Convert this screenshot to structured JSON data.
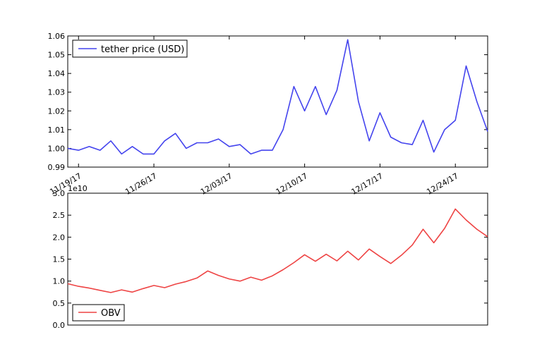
{
  "chart_data": [
    {
      "type": "line",
      "series": [
        {
          "name": "tether price (USD)",
          "color": "#4444ee",
          "x": [
            0,
            1,
            2,
            3,
            4,
            5,
            6,
            7,
            8,
            9,
            10,
            11,
            12,
            13,
            14,
            15,
            16,
            17,
            18,
            19,
            20,
            21,
            22,
            23,
            24,
            25,
            26,
            27,
            28,
            29,
            30,
            31,
            32,
            33,
            34,
            35,
            36,
            37,
            38,
            39
          ],
          "values": [
            1.0,
            0.999,
            1.001,
            0.999,
            1.004,
            0.997,
            1.001,
            0.997,
            0.997,
            1.004,
            1.008,
            1.0,
            1.003,
            1.003,
            1.005,
            1.001,
            1.002,
            0.997,
            0.999,
            0.999,
            1.01,
            1.033,
            1.02,
            1.033,
            1.018,
            1.031,
            1.058,
            1.025,
            1.004,
            1.019,
            1.006,
            1.003,
            1.002,
            1.015,
            0.998,
            1.01,
            1.015,
            1.044,
            1.025,
            1.009
          ]
        }
      ],
      "ylim": [
        0.99,
        1.06
      ],
      "xlim": [
        0,
        39
      ],
      "yticks": [
        "0.99",
        "1.00",
        "1.01",
        "1.02",
        "1.03",
        "1.04",
        "1.05",
        "1.06"
      ],
      "xtick_labels": [
        "11/19/17",
        "11/26/17",
        "12/03/17",
        "12/10/17",
        "12/17/17",
        "12/24/17"
      ],
      "xtick_positions": [
        1,
        8,
        15,
        22,
        29,
        36
      ],
      "legend": "top-left",
      "grid": false
    },
    {
      "type": "line",
      "offset_text": "1e10",
      "series": [
        {
          "name": "OBV",
          "color": "#ee4444",
          "x": [
            0,
            1,
            2,
            3,
            4,
            5,
            6,
            7,
            8,
            9,
            10,
            11,
            12,
            13,
            14,
            15,
            16,
            17,
            18,
            19,
            20,
            21,
            22,
            23,
            24,
            25,
            26,
            27,
            28,
            29,
            30,
            31,
            32,
            33,
            34,
            35,
            36,
            37,
            38,
            39
          ],
          "values": [
            0.94,
            0.88,
            0.84,
            0.79,
            0.74,
            0.8,
            0.75,
            0.83,
            0.9,
            0.85,
            0.93,
            0.99,
            1.07,
            1.23,
            1.13,
            1.05,
            1.0,
            1.09,
            1.02,
            1.12,
            1.26,
            1.42,
            1.6,
            1.45,
            1.61,
            1.46,
            1.68,
            1.48,
            1.73,
            1.56,
            1.4,
            1.59,
            1.82,
            2.18,
            1.87,
            2.2,
            2.64,
            2.39,
            2.18,
            2.01
          ]
        }
      ],
      "ylim": [
        0.0,
        3.0
      ],
      "xlim": [
        0,
        39
      ],
      "yticks": [
        "0.0",
        "0.5",
        "1.0",
        "1.5",
        "2.0",
        "2.5",
        "3.0"
      ],
      "legend": "bottom-left",
      "grid": false
    }
  ]
}
